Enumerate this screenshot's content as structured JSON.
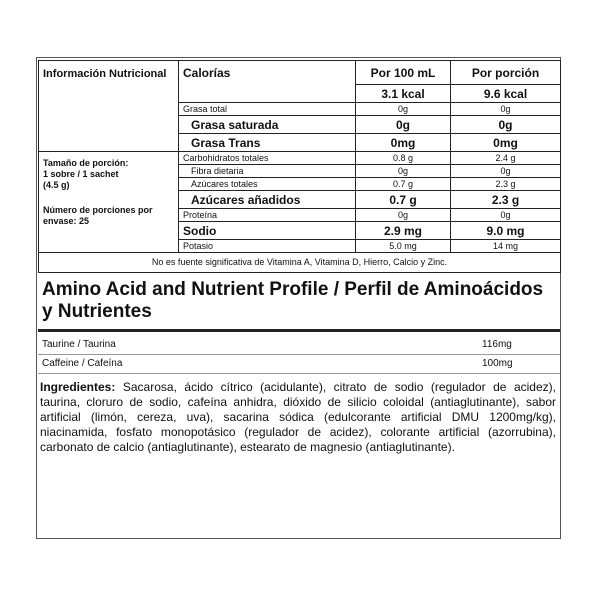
{
  "nutrition_table": {
    "header_label": "Información Nutricional",
    "calories_label": "Calorías",
    "columns": [
      "Por 100 mL",
      "Por porción"
    ],
    "calories": [
      "3.1 kcal",
      "9.6 kcal"
    ],
    "serving_size": [
      "Tamaño de porción:",
      "1 sobre / 1 sachet",
      "(4.5 g)"
    ],
    "servings": "Número de porciones por envase: 25",
    "rows": [
      {
        "name": "Grasa total",
        "per_100ml": "0g",
        "per_serving": "0g"
      },
      {
        "name": "Grasa saturada",
        "per_100ml": "0g",
        "per_serving": "0g",
        "bold": true,
        "indent": true
      },
      {
        "name": "Grasa Trans",
        "per_100ml": "0mg",
        "per_serving": "0mg",
        "bold": true,
        "indent": true
      },
      {
        "name": "Carbohidratos totales",
        "per_100ml": "0.8 g",
        "per_serving": "2.4 g"
      },
      {
        "name": "Fibra dietaria",
        "per_100ml": "0g",
        "per_serving": "0g",
        "indent": true
      },
      {
        "name": "Azúcares totales",
        "per_100ml": "0.7 g",
        "per_serving": "2.3 g",
        "indent": true
      },
      {
        "name": "Azúcares añadidos",
        "per_100ml": "0.7 g",
        "per_serving": "2.3 g",
        "bold": true,
        "indent": true
      },
      {
        "name": "Proteína",
        "per_100ml": "0g",
        "per_serving": "0g"
      },
      {
        "name": "Sodio",
        "per_100ml": "2.9 mg",
        "per_serving": "9.0 mg",
        "bold": true
      },
      {
        "name": "Potasio",
        "per_100ml": "5.0 mg",
        "per_serving": "14 mg"
      }
    ],
    "footnote": "No es fuente significativa de Vitamina A, Vitamina D, Hierro, Calcio y Zinc."
  },
  "amino_profile": {
    "title": "Amino Acid and Nutrient Profile / Perfil de Aminoácidos y Nutrientes",
    "rows": [
      {
        "name": "Taurine / Taurina",
        "amount": "116mg"
      },
      {
        "name": "Caffeine / Cafeína",
        "amount": "100mg"
      }
    ]
  },
  "ingredients": {
    "label": "Ingredientes:",
    "text": "Sacarosa, ácido cítrico (acidulante), citrato de sodio (regulador de acidez), taurina, cloruro de sodio, cafeína anhidra, dióxido de silicio coloidal (antiaglutinante), sabor artificial (limón, cereza, uva), sacarina sódica (edulcorante artificial DMU 1200mg/kg), niacinamida, fosfato monopotásico (regulador de acidez), colorante artificial (azorrubina), carbonato de calcio (antiaglutinante), estearato de magnesio (antiaglutinante)."
  }
}
